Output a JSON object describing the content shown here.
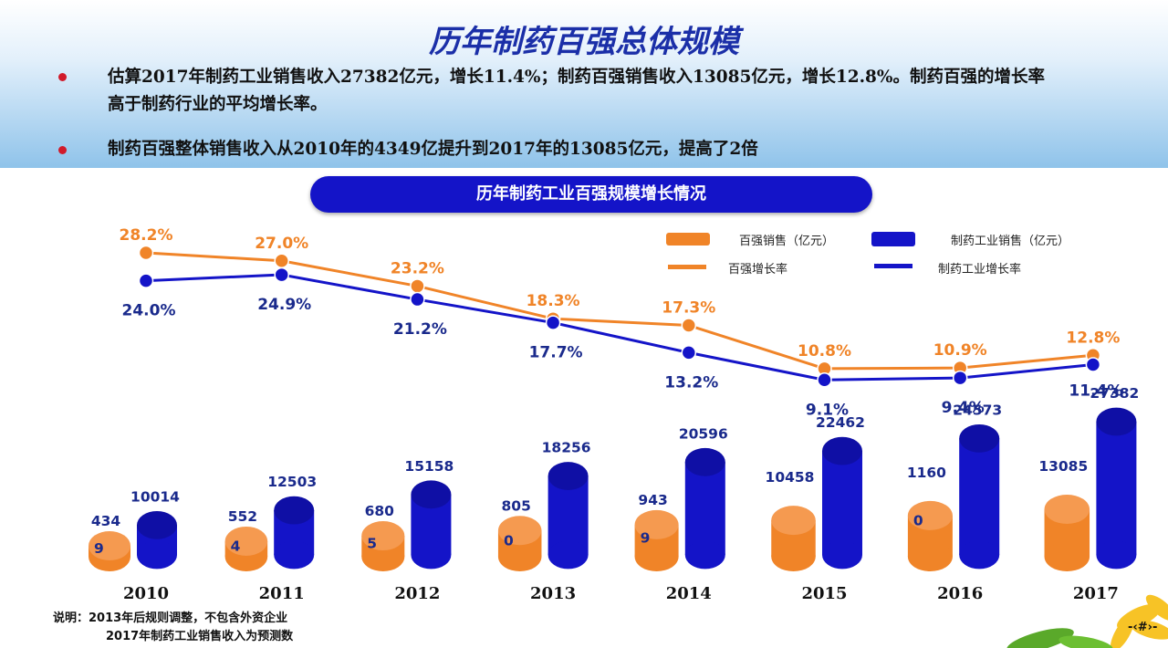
{
  "title": "历年制药百强总体规模",
  "bullets": [
    {
      "line1": "估算2017年制药工业销售收入27382亿元，增长11.4%；制药百强销售收入13085亿元，增长12.8%。制药百强的增长率",
      "line2": "高于制药行业的平均增长率。"
    },
    {
      "line1": "制药百强整体销售收入从2010年的4349亿提升到2017年的13085亿元，提高了2倍"
    }
  ],
  "banner": "历年制药工业百强规模增长情况",
  "legend": {
    "bar1": "百强销售（亿元）",
    "bar2": "制药工业销售（亿元）",
    "line1": "百强增长率",
    "line2": "制药工业增长率"
  },
  "colors": {
    "orange": "#f08428",
    "blue": "#1414c8",
    "bullet": "#d11a2a"
  },
  "chart_data": {
    "type": "bar+line",
    "categories": [
      "2010",
      "2011",
      "2012",
      "2013",
      "2014",
      "2015",
      "2016",
      "2017"
    ],
    "bar_series": [
      {
        "name": "百强销售（亿元）",
        "values": [
          4349,
          5524,
          6805,
          8050,
          9439,
          10458,
          11600,
          13085
        ],
        "labels_top": [
          "434",
          "552",
          "680",
          "805",
          "943",
          "10458",
          "1160",
          "13085"
        ],
        "labels_on_bar": [
          "9",
          "4",
          "5",
          "0",
          "9",
          "",
          "0",
          ""
        ]
      },
      {
        "name": "制药工业销售（亿元）",
        "values": [
          10014,
          12503,
          15158,
          18256,
          20596,
          22462,
          24573,
          27382
        ],
        "labels_top": [
          "10014",
          "12503",
          "15158",
          "18256",
          "20596",
          "22462",
          "24573",
          "27382"
        ]
      }
    ],
    "line_series": [
      {
        "name": "百强增长率",
        "values": [
          28.2,
          27.0,
          23.2,
          18.3,
          17.3,
          10.8,
          10.9,
          12.8
        ],
        "labels": [
          "28.2%",
          "27.0%",
          "23.2%",
          "18.3%",
          "17.3%",
          "10.8%",
          "10.9%",
          "12.8%"
        ]
      },
      {
        "name": "制药工业增长率",
        "values": [
          24.0,
          24.9,
          21.2,
          17.7,
          13.2,
          9.1,
          9.4,
          11.4
        ],
        "labels": [
          "24.0%",
          "24.9%",
          "21.2%",
          "17.7%",
          "13.2%",
          "9.1%",
          "9.4%",
          "11.4%"
        ]
      }
    ],
    "legend_position": "top-right"
  },
  "notes": [
    "说明：2013年后规则调整，不包含外资企业",
    "2017年制药工业销售收入为预测数"
  ],
  "page_number": "-‹#›-"
}
